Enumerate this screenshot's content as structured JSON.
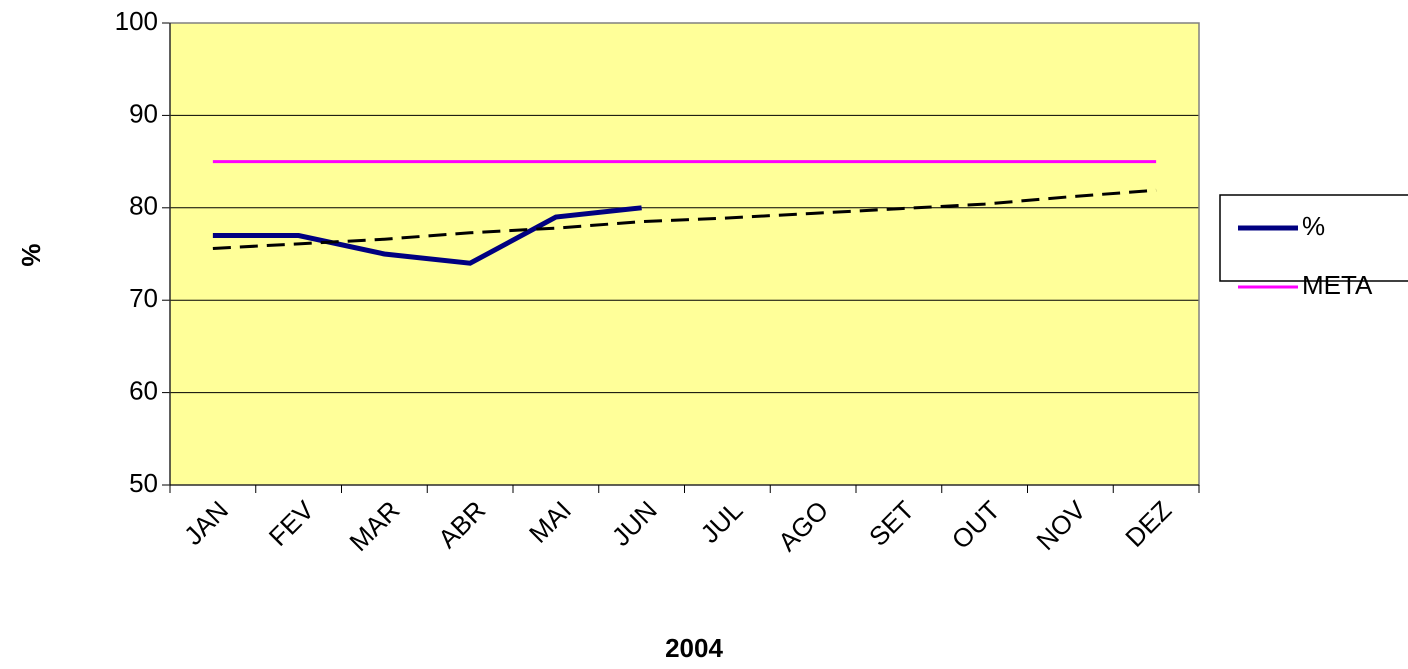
{
  "chart_data": {
    "type": "line",
    "x_label": "2004",
    "y_label": "%",
    "categories": [
      "JAN",
      "FEV",
      "MAR",
      "ABR",
      "MAI",
      "JUN",
      "JUL",
      "AGO",
      "SET",
      "OUT",
      "NOV",
      "DEZ"
    ],
    "series": [
      {
        "name": "%",
        "color": "#000080",
        "values": [
          77,
          77,
          75,
          74,
          79,
          80,
          null,
          null,
          null,
          null,
          null,
          null
        ]
      },
      {
        "name": "META",
        "color": "#ff00ff",
        "values": [
          85,
          85,
          85,
          85,
          85,
          85,
          85,
          85,
          85,
          85,
          85,
          85
        ]
      }
    ],
    "trendline": {
      "color": "#000000",
      "dashed": true,
      "values": [
        75.6,
        76.1,
        76.6,
        77.3,
        77.8,
        78.5,
        78.9,
        79.4,
        79.9,
        80.4,
        81.2,
        81.9
      ]
    },
    "ylim": [
      50,
      100
    ],
    "yticks": [
      50,
      60,
      70,
      80,
      90,
      100
    ],
    "grid": true,
    "background": "#ffff99",
    "legend": "right"
  }
}
